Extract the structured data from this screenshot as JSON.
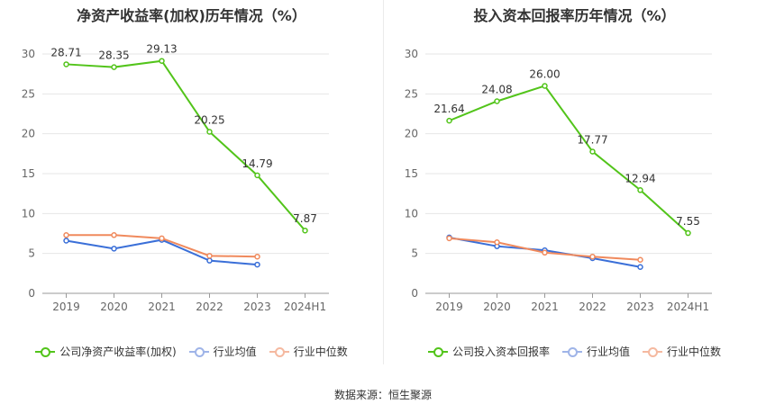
{
  "chart_data": [
    {
      "type": "line",
      "title": "净资产收益率(加权)历年情况（%）",
      "categories": [
        "2019",
        "2020",
        "2021",
        "2022",
        "2023",
        "2024H1"
      ],
      "ylim": [
        0,
        30
      ],
      "yticks": [
        "0",
        "5",
        "10",
        "15",
        "20",
        "25",
        "30"
      ],
      "grid": true,
      "legend_position": "bottom",
      "series": [
        {
          "name": "公司净资产收益率(加权)",
          "color": "#52c41a",
          "values": [
            28.71,
            28.35,
            29.13,
            20.25,
            14.79,
            7.87
          ],
          "labels": [
            "28.71",
            "28.35",
            "29.13",
            "20.25",
            "14.79",
            "7.87"
          ]
        },
        {
          "name": "行业均值",
          "color": "#3a6fd8",
          "values": [
            6.6,
            5.6,
            6.7,
            4.1,
            3.6,
            null
          ]
        },
        {
          "name": "行业中位数",
          "color": "#f08a5d",
          "values": [
            7.3,
            7.3,
            6.9,
            4.7,
            4.6,
            null
          ]
        }
      ]
    },
    {
      "type": "line",
      "title": "投入资本回报率历年情况（%）",
      "categories": [
        "2019",
        "2020",
        "2021",
        "2022",
        "2023",
        "2024H1"
      ],
      "ylim": [
        0,
        30
      ],
      "yticks": [
        "0",
        "5",
        "10",
        "15",
        "20",
        "25",
        "30"
      ],
      "grid": true,
      "legend_position": "bottom",
      "series": [
        {
          "name": "公司投入资本回报率",
          "color": "#52c41a",
          "values": [
            21.64,
            24.08,
            26.0,
            17.77,
            12.94,
            7.55
          ],
          "labels": [
            "21.64",
            "24.08",
            "26.00",
            "17.77",
            "12.94",
            "7.55"
          ]
        },
        {
          "name": "行业均值",
          "color": "#3a6fd8",
          "values": [
            7.0,
            5.9,
            5.4,
            4.4,
            3.3,
            null
          ]
        },
        {
          "name": "行业中位数",
          "color": "#f08a5d",
          "values": [
            6.9,
            6.4,
            5.1,
            4.6,
            4.2,
            null
          ]
        }
      ]
    }
  ],
  "legend_styles": {
    "bg": "#ffffff"
  },
  "source_text": "数据来源：恒生聚源"
}
